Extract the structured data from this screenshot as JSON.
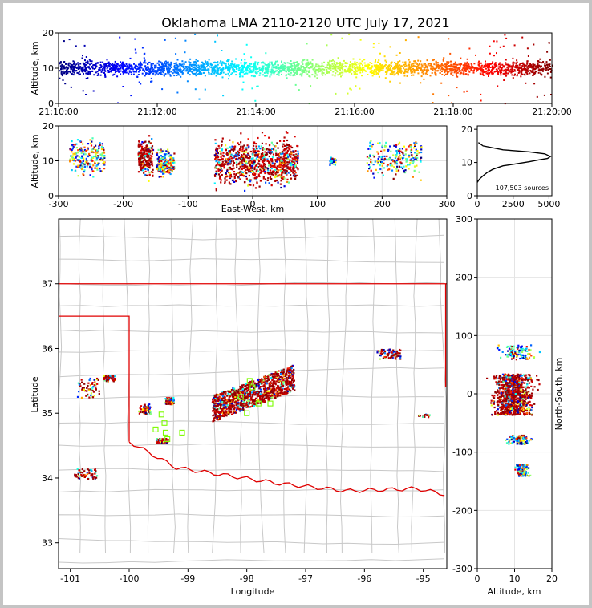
{
  "title": "Oklahoma LMA 2110-2120 UTC July 17, 2021",
  "colors": {
    "frame": "#c4c4c4",
    "state_border": "#e00000",
    "county_lines": "#c8c8c8",
    "histogram_line": "#000000",
    "station_marker": "#7cfc00",
    "grid": "#e4e4e4"
  },
  "colormap": "jet (early = blue, late = dark red)",
  "chart_data": [
    {
      "id": "time_height",
      "type": "scatter",
      "xlabel": "",
      "ylabel": "Altitude, km",
      "xlim": [
        "21:10:00",
        "21:20:00"
      ],
      "ylim": [
        0,
        20
      ],
      "xticks": [
        "21:10:00",
        "21:12:00",
        "21:14:00",
        "21:16:00",
        "21:18:00",
        "21:20:00"
      ],
      "yticks": [
        "0",
        "10",
        "20"
      ],
      "summary": "continuous band of sources across the whole period, densest between about 6 and 15 km, scattered points up to 20 km",
      "series": [
        {
          "x": [
            "21:10",
            "21:11",
            "21:12",
            "21:13",
            "21:14",
            "21:15",
            "21:16",
            "21:17",
            "21:18",
            "21:19",
            "21:20"
          ],
          "core_low_km": [
            6,
            6,
            6,
            6,
            6,
            6,
            6,
            6,
            6,
            6,
            6
          ],
          "core_high_km": [
            15,
            14,
            15,
            14,
            15,
            14,
            15,
            14,
            15,
            14,
            15
          ]
        }
      ]
    },
    {
      "id": "ew_height",
      "type": "scatter",
      "xlabel": "East-West, km",
      "ylabel": "Altitude, km",
      "xlim": [
        -300,
        300
      ],
      "ylim": [
        0,
        20
      ],
      "xticks": [
        "-300",
        "-200",
        "-100",
        "0",
        "100",
        "200",
        "300"
      ],
      "yticks": [
        "0",
        "10",
        "20"
      ],
      "series": [
        {
          "cluster": "far-west",
          "x": [
            -285,
            -230
          ],
          "z": [
            4,
            19
          ]
        },
        {
          "cluster": "west",
          "x": [
            -178,
            -155
          ],
          "z": [
            3,
            19
          ]
        },
        {
          "cluster": "west-2",
          "x": [
            -150,
            -122
          ],
          "z": [
            4,
            15
          ]
        },
        {
          "cluster": "central",
          "x": [
            -60,
            70
          ],
          "z": [
            0,
            20
          ]
        },
        {
          "cluster": "east",
          "x": [
            118,
            128
          ],
          "z": [
            8,
            12
          ]
        },
        {
          "cluster": "far-east",
          "x": [
            175,
            260
          ],
          "z": [
            3,
            19
          ]
        }
      ]
    },
    {
      "id": "height_histogram",
      "type": "line",
      "xlabel": "",
      "ylabel": "",
      "xlim": [
        0,
        5200
      ],
      "ylim": [
        0,
        21
      ],
      "xticks": [
        "0",
        "2500",
        "5000"
      ],
      "yticks": [
        "0",
        "10",
        "20"
      ],
      "annotation": "107,503 sources",
      "x": [
        0,
        150,
        400,
        700,
        1100,
        1800,
        2600,
        3600,
        4300,
        4900,
        5100,
        4700,
        3600,
        1800,
        400,
        80
      ],
      "y": [
        4,
        5,
        6,
        7,
        8,
        9,
        9.5,
        10.2,
        10.8,
        11.2,
        11.8,
        12.6,
        13.2,
        13.8,
        15,
        16
      ]
    },
    {
      "id": "plan_view",
      "type": "scatter",
      "xlabel": "Longitude",
      "ylabel": "Latitude",
      "xlim": [
        -101.2,
        -94.6
      ],
      "ylim": [
        32.6,
        38.0
      ],
      "xticks": [
        "-101",
        "-100",
        "-99",
        "-98",
        "-97",
        "-96",
        "-95"
      ],
      "yticks": [
        "33",
        "34",
        "35",
        "36",
        "37"
      ],
      "series": [
        {
          "cluster": "main",
          "lon": [
            -98.6,
            -97.2
          ],
          "lat": [
            35.0,
            35.8
          ]
        },
        {
          "cluster": "panhandle-1",
          "lon": [
            -100.9,
            -100.5
          ],
          "lat": [
            35.25,
            35.55
          ]
        },
        {
          "cluster": "panhandle-2",
          "lon": [
            -100.45,
            -100.25
          ],
          "lat": [
            35.5,
            35.6
          ]
        },
        {
          "cluster": "west-central",
          "lon": [
            -99.85,
            -99.65
          ],
          "lat": [
            35.0,
            35.15
          ]
        },
        {
          "cluster": "sw-small",
          "lon": [
            -99.4,
            -99.25
          ],
          "lat": [
            35.15,
            35.25
          ]
        },
        {
          "cluster": "south",
          "lon": [
            -99.55,
            -99.35
          ],
          "lat": [
            34.55,
            34.62
          ]
        },
        {
          "cluster": "texas",
          "lon": [
            -100.95,
            -100.55
          ],
          "lat": [
            34.0,
            34.15
          ]
        },
        {
          "cluster": "northeast",
          "lon": [
            -95.8,
            -95.4
          ],
          "lat": [
            35.85,
            36.0
          ]
        },
        {
          "cluster": "east-small",
          "lon": [
            -95.1,
            -94.9
          ],
          "lat": [
            34.95,
            35.0
          ]
        }
      ],
      "stations": {
        "lon": [
          -99.55,
          -99.4,
          -99.45,
          -99.38,
          -99.1,
          -99.35,
          -98.0,
          -97.8,
          -97.6,
          -98.1,
          -97.9,
          -97.95
        ],
        "lat": [
          34.75,
          34.85,
          34.98,
          34.7,
          34.7,
          34.6,
          35.0,
          35.15,
          35.15,
          35.25,
          35.4,
          35.5
        ]
      }
    },
    {
      "id": "height_ns",
      "type": "scatter",
      "xlabel": "Altitude, km",
      "ylabel": "North-South, km",
      "xlim": [
        0,
        20
      ],
      "ylim": [
        -300,
        300
      ],
      "xticks": [
        "0",
        "10",
        "20"
      ],
      "yticks": [
        "-300",
        "-200",
        "-100",
        "0",
        "100",
        "200",
        "300"
      ],
      "series": [
        {
          "cluster": "main",
          "z": [
            1,
            18
          ],
          "y": [
            -35,
            35
          ]
        },
        {
          "cluster": "north",
          "z": [
            3,
            18
          ],
          "y": [
            60,
            85
          ]
        },
        {
          "cluster": "south",
          "z": [
            6,
            16
          ],
          "y": [
            -85,
            -70
          ]
        },
        {
          "cluster": "far-south",
          "z": [
            9,
            15
          ],
          "y": [
            -140,
            -120
          ]
        }
      ]
    }
  ]
}
